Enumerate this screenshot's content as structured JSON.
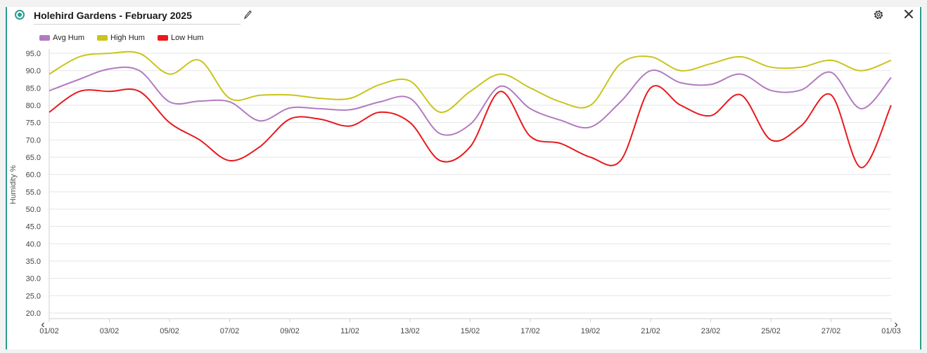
{
  "header": {
    "title": "Holehird Gardens - February 2025"
  },
  "icons": {
    "status": "status-dot-icon",
    "edit": "pencil-icon",
    "settings": "gear-icon",
    "close": "close-icon",
    "prev": "chevron-left-icon",
    "next": "chevron-right-icon"
  },
  "chart_data": {
    "type": "line",
    "title": "",
    "xlabel": "",
    "ylabel": "Humidity %",
    "ylim": [
      20,
      95
    ],
    "y_ticks": [
      "95.0",
      "90.0",
      "85.0",
      "80.0",
      "75.0",
      "70.0",
      "65.0",
      "60.0",
      "55.0",
      "50.0",
      "45.0",
      "40.0",
      "35.0",
      "30.0",
      "25.0",
      "20.0"
    ],
    "x_ticks": [
      "01/02",
      "03/02",
      "05/02",
      "07/02",
      "09/02",
      "11/02",
      "13/02",
      "15/02",
      "17/02",
      "19/02",
      "21/02",
      "23/02",
      "25/02",
      "27/02",
      "01/03"
    ],
    "legend_position": "top-left",
    "grid": true,
    "x": [
      "01/02",
      "02/02",
      "03/02",
      "04/02",
      "05/02",
      "06/02",
      "07/02",
      "08/02",
      "09/02",
      "10/02",
      "11/02",
      "12/02",
      "13/02",
      "14/02",
      "15/02",
      "16/02",
      "17/02",
      "18/02",
      "19/02",
      "20/02",
      "21/02",
      "22/02",
      "23/02",
      "24/02",
      "25/02",
      "26/02",
      "27/02",
      "28/02",
      "01/03"
    ],
    "series": [
      {
        "name": "Avg Hum",
        "color": "#b27bc0",
        "values": [
          84.2,
          87.5,
          90.5,
          90.0,
          81.0,
          81.2,
          81.0,
          75.5,
          79.2,
          79.0,
          78.7,
          81.0,
          82.0,
          71.8,
          74.5,
          85.5,
          79.0,
          75.7,
          73.7,
          81.0,
          90.0,
          86.5,
          86.0,
          89.0,
          84.3,
          84.4,
          89.5,
          79.0,
          88.0
        ]
      },
      {
        "name": "High Hum",
        "color": "#c8c51b",
        "values": [
          89.0,
          94.0,
          95.0,
          95.0,
          89.0,
          93.0,
          82.0,
          82.9,
          83.0,
          82.0,
          82.0,
          86.0,
          87.0,
          78.0,
          84.0,
          89.0,
          85.0,
          81.0,
          80.0,
          92.0,
          94.0,
          90.0,
          92.0,
          94.0,
          91.0,
          91.0,
          93.0,
          90.0,
          93.0
        ]
      },
      {
        "name": "Low Hum",
        "color": "#e8191d",
        "values": [
          78.0,
          84.0,
          84.0,
          84.0,
          75.0,
          70.0,
          64.0,
          68.0,
          76.0,
          76.0,
          74.0,
          78.0,
          75.0,
          64.0,
          68.0,
          84.0,
          71.0,
          69.0,
          65.0,
          64.0,
          85.0,
          80.0,
          77.0,
          83.0,
          70.0,
          74.0,
          83.0,
          62.0,
          80.0
        ]
      }
    ]
  }
}
